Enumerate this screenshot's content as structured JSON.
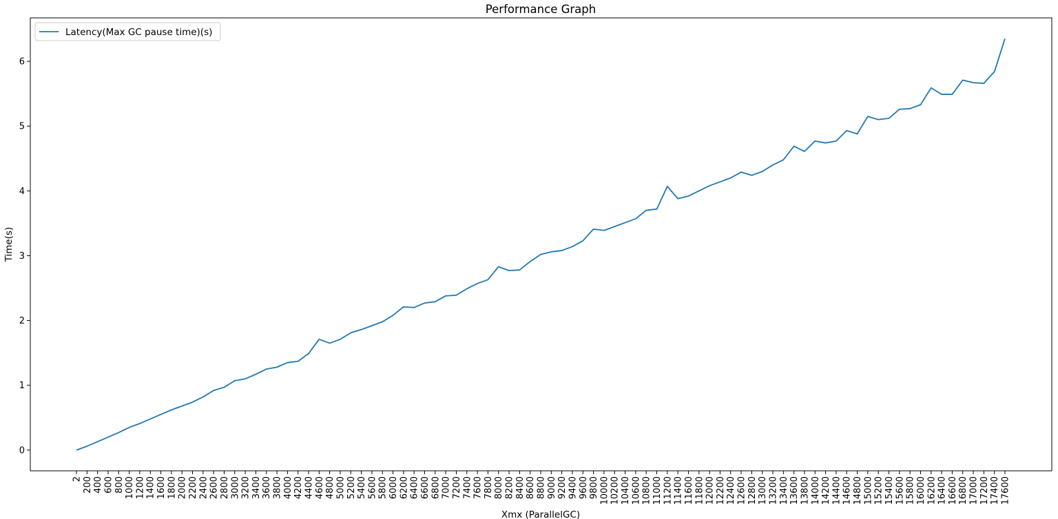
{
  "chart_data": {
    "type": "line",
    "title": "Performance Graph",
    "xlabel": "Xmx (ParallelGC)",
    "ylabel": "Time(s)",
    "categories": [
      "2",
      "200",
      "400",
      "600",
      "800",
      "1000",
      "1200",
      "1400",
      "1600",
      "1800",
      "2000",
      "2200",
      "2400",
      "2600",
      "2800",
      "3000",
      "3200",
      "3400",
      "3600",
      "3800",
      "4000",
      "4200",
      "4400",
      "4600",
      "4800",
      "5000",
      "5200",
      "5400",
      "5600",
      "5800",
      "6000",
      "6200",
      "6400",
      "6600",
      "6800",
      "7000",
      "7200",
      "7400",
      "7600",
      "7800",
      "8000",
      "8200",
      "8400",
      "8600",
      "8800",
      "9000",
      "9200",
      "9400",
      "9600",
      "9800",
      "10000",
      "10200",
      "10400",
      "10600",
      "10800",
      "11000",
      "11200",
      "11400",
      "11600",
      "11800",
      "12000",
      "12200",
      "12400",
      "12600",
      "12800",
      "13000",
      "13200",
      "13400",
      "13600",
      "13800",
      "14000",
      "14200",
      "14400",
      "14600",
      "14800",
      "15000",
      "15200",
      "15400",
      "15600",
      "15800",
      "16000",
      "16200",
      "16400",
      "16600",
      "16800",
      "17000",
      "17200",
      "17400",
      "17600"
    ],
    "series": [
      {
        "name": "Latency(Max GC pause time)(s)",
        "color": "#1f77b4",
        "values": [
          0.0,
          0.06,
          0.13,
          0.2,
          0.27,
          0.35,
          0.41,
          0.48,
          0.55,
          0.62,
          0.68,
          0.74,
          0.82,
          0.92,
          0.97,
          1.07,
          1.1,
          1.17,
          1.25,
          1.28,
          1.35,
          1.37,
          1.49,
          1.71,
          1.65,
          1.71,
          1.81,
          1.86,
          1.92,
          1.98,
          2.08,
          2.21,
          2.2,
          2.27,
          2.29,
          2.38,
          2.39,
          2.49,
          2.57,
          2.63,
          2.83,
          2.77,
          2.78,
          2.91,
          3.02,
          3.06,
          3.08,
          3.14,
          3.23,
          3.41,
          3.39,
          3.45,
          3.51,
          3.57,
          3.7,
          3.72,
          4.07,
          3.88,
          3.92,
          4.0,
          4.08,
          4.14,
          4.2,
          4.29,
          4.24,
          4.3,
          4.4,
          4.48,
          4.69,
          4.61,
          4.77,
          4.74,
          4.77,
          4.93,
          4.88,
          5.15,
          5.1,
          5.12,
          5.26,
          5.27,
          5.33,
          5.59,
          5.49,
          5.49,
          5.71,
          5.67,
          5.66,
          5.84,
          6.35
        ]
      }
    ],
    "yticks": [
      0,
      1,
      2,
      3,
      4,
      5,
      6
    ],
    "ylim": [
      -0.32,
      6.67
    ],
    "grid": false,
    "legend_position": "upper-left"
  }
}
